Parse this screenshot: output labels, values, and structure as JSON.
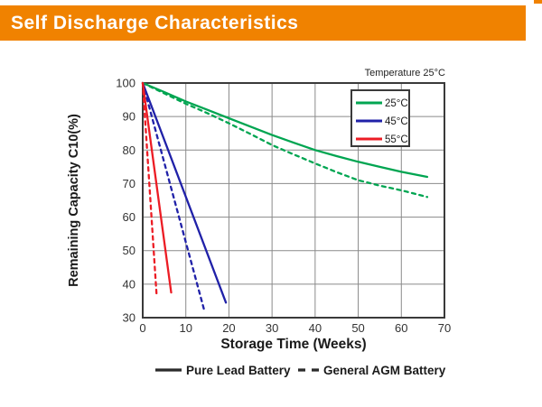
{
  "header": {
    "title": "Self Discharge Characteristics"
  },
  "colors": {
    "accent_orange": "#F08200",
    "green": "#00A551",
    "blue": "#2021A8",
    "red": "#EC1C24",
    "grid": "#8a8a8a",
    "axis": "#3a3a3a"
  },
  "chart_data": {
    "type": "line",
    "title": "Self Discharge Characteristics",
    "xlabel": "Storage Time (Weeks)",
    "ylabel": "Remaining Capacity C10(%)",
    "annotation": "Temperature 25°C",
    "xlim": [
      0,
      70
    ],
    "ylim": [
      30,
      100
    ],
    "xticks": [
      0,
      10,
      20,
      30,
      40,
      50,
      60,
      70
    ],
    "yticks": [
      30,
      40,
      50,
      60,
      70,
      80,
      90,
      100
    ],
    "grid": true,
    "legend": {
      "position": "top-right",
      "entries": [
        {
          "label": "25°C",
          "color": "#00A551"
        },
        {
          "label": "45°C",
          "color": "#2021A8"
        },
        {
          "label": "55°C",
          "color": "#EC1C24"
        }
      ]
    },
    "style_legend": [
      {
        "label": "Pure Lead Battery",
        "style": "solid"
      },
      {
        "label": "General AGM Battery",
        "style": "dashed"
      }
    ],
    "series": [
      {
        "name": "25C-pure-lead",
        "label": "25°C Pure Lead Battery",
        "color": "#00A551",
        "style": "solid",
        "points": [
          [
            0,
            100
          ],
          [
            5,
            97.3
          ],
          [
            10,
            94.5
          ],
          [
            15,
            92
          ],
          [
            20,
            89.5
          ],
          [
            25,
            87
          ],
          [
            30,
            84.5
          ],
          [
            35,
            82.2
          ],
          [
            40,
            80
          ],
          [
            45,
            78.2
          ],
          [
            50,
            76.5
          ],
          [
            55,
            75
          ],
          [
            60,
            73.5
          ],
          [
            66,
            72
          ]
        ]
      },
      {
        "name": "25C-agm",
        "label": "25°C General AGM Battery",
        "color": "#00A551",
        "style": "dashed",
        "points": [
          [
            0,
            100
          ],
          [
            5,
            96.9
          ],
          [
            10,
            93.8
          ],
          [
            15,
            91
          ],
          [
            20,
            88
          ],
          [
            25,
            84.8
          ],
          [
            30,
            81.5
          ],
          [
            35,
            78.7
          ],
          [
            40,
            76
          ],
          [
            45,
            73.4
          ],
          [
            50,
            71
          ],
          [
            55,
            69.4
          ],
          [
            60,
            68
          ],
          [
            66,
            66
          ]
        ]
      },
      {
        "name": "45C-pure-lead",
        "label": "45°C Pure Lead Battery",
        "color": "#2021A8",
        "style": "solid",
        "points": [
          [
            0,
            100
          ],
          [
            19.3,
            34.5
          ]
        ]
      },
      {
        "name": "45C-agm",
        "label": "45°C General AGM Battery",
        "color": "#2021A8",
        "style": "dashed",
        "points": [
          [
            0,
            100
          ],
          [
            14.2,
            32.5
          ]
        ]
      },
      {
        "name": "55C-pure-lead",
        "label": "55°C Pure Lead Battery",
        "color": "#EC1C24",
        "style": "solid",
        "points": [
          [
            0,
            100
          ],
          [
            6.6,
            37.5
          ]
        ]
      },
      {
        "name": "55C-agm",
        "label": "55°C General AGM Battery",
        "color": "#EC1C24",
        "style": "dashed",
        "points": [
          [
            0,
            100
          ],
          [
            3.2,
            37
          ]
        ]
      }
    ]
  }
}
